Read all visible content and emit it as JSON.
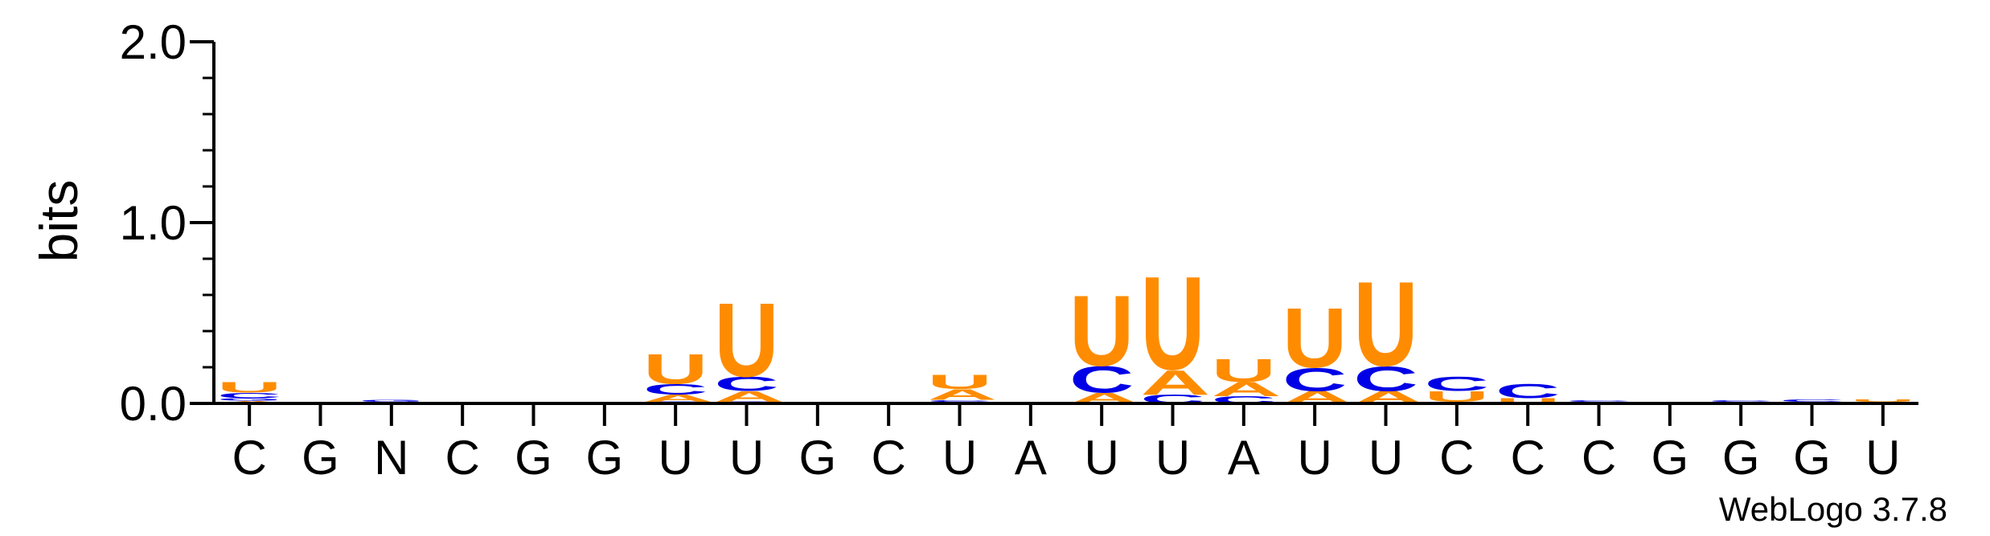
{
  "chart_data": {
    "type": "sequence-logo",
    "ylabel": "bits",
    "ylim": [
      0,
      2.0
    ],
    "y_ticks": [
      "0.0",
      "1.0",
      "2.0"
    ],
    "credit": "WebLogo 3.7.8",
    "colors": {
      "A": "#FF8C00",
      "U": "#FF8C00",
      "C": "#0000E6",
      "G": "#0000E6"
    },
    "consensus": [
      "C",
      "G",
      "N",
      "C",
      "G",
      "G",
      "U",
      "U",
      "G",
      "C",
      "U",
      "A",
      "U",
      "U",
      "A",
      "U",
      "U",
      "C",
      "C",
      "C",
      "G",
      "G",
      "G",
      "U"
    ],
    "positions": [
      {
        "stack": [
          {
            "letter": "A",
            "bits": 0.015
          },
          {
            "letter": "G",
            "bits": 0.015
          },
          {
            "letter": "C",
            "bits": 0.03
          },
          {
            "letter": "U",
            "bits": 0.06
          }
        ]
      },
      {
        "stack": []
      },
      {
        "stack": [
          {
            "letter": "C",
            "bits": 0.01
          },
          {
            "letter": "G",
            "bits": 0.01
          }
        ]
      },
      {
        "stack": []
      },
      {
        "stack": []
      },
      {
        "stack": [
          {
            "letter": "U",
            "bits": 0.005
          }
        ]
      },
      {
        "stack": [
          {
            "letter": "G",
            "bits": 0.01
          },
          {
            "letter": "A",
            "bits": 0.04
          },
          {
            "letter": "C",
            "bits": 0.06
          },
          {
            "letter": "U",
            "bits": 0.17
          }
        ]
      },
      {
        "stack": [
          {
            "letter": "G",
            "bits": 0.01
          },
          {
            "letter": "A",
            "bits": 0.06
          },
          {
            "letter": "C",
            "bits": 0.08
          },
          {
            "letter": "U",
            "bits": 0.42
          }
        ]
      },
      {
        "stack": []
      },
      {
        "stack": []
      },
      {
        "stack": [
          {
            "letter": "G",
            "bits": 0.01
          },
          {
            "letter": "C",
            "bits": 0.01
          },
          {
            "letter": "A",
            "bits": 0.06
          },
          {
            "letter": "U",
            "bits": 0.08
          }
        ]
      },
      {
        "stack": []
      },
      {
        "stack": [
          {
            "letter": "A",
            "bits": 0.06
          },
          {
            "letter": "C",
            "bits": 0.15
          },
          {
            "letter": "U",
            "bits": 0.4
          }
        ]
      },
      {
        "stack": [
          {
            "letter": "C",
            "bits": 0.05
          },
          {
            "letter": "A",
            "bits": 0.14
          },
          {
            "letter": "U",
            "bits": 0.53
          }
        ]
      },
      {
        "stack": [
          {
            "letter": "C",
            "bits": 0.04
          },
          {
            "letter": "A",
            "bits": 0.08
          },
          {
            "letter": "U",
            "bits": 0.13
          }
        ]
      },
      {
        "stack": [
          {
            "letter": "A",
            "bits": 0.07
          },
          {
            "letter": "C",
            "bits": 0.13
          },
          {
            "letter": "U",
            "bits": 0.34
          }
        ]
      },
      {
        "stack": [
          {
            "letter": "A",
            "bits": 0.07
          },
          {
            "letter": "C",
            "bits": 0.14
          },
          {
            "letter": "U",
            "bits": 0.48
          }
        ]
      },
      {
        "stack": [
          {
            "letter": "A",
            "bits": 0.01
          },
          {
            "letter": "U",
            "bits": 0.06
          },
          {
            "letter": "C",
            "bits": 0.08
          }
        ]
      },
      {
        "stack": [
          {
            "letter": "U",
            "bits": 0.03
          },
          {
            "letter": "C",
            "bits": 0.08
          }
        ]
      },
      {
        "stack": [
          {
            "letter": "U",
            "bits": 0.01
          },
          {
            "letter": "C",
            "bits": 0.01
          }
        ]
      },
      {
        "stack": []
      },
      {
        "stack": [
          {
            "letter": "U",
            "bits": 0.01
          },
          {
            "letter": "C",
            "bits": 0.01
          }
        ]
      },
      {
        "stack": [
          {
            "letter": "U",
            "bits": 0.01
          },
          {
            "letter": "C",
            "bits": 0.015
          }
        ]
      },
      {
        "stack": [
          {
            "letter": "A",
            "bits": 0.01
          },
          {
            "letter": "U",
            "bits": 0.015
          }
        ]
      }
    ]
  }
}
